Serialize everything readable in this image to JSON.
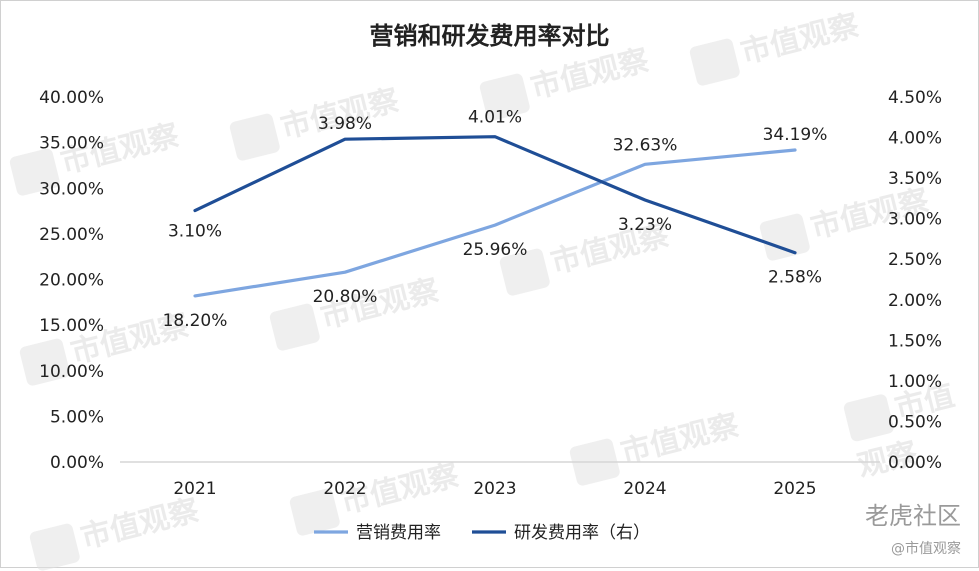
{
  "title": "营销和研发费用率对比",
  "watermark_text": "市值观察",
  "brand_main": "老虎社区",
  "brand_sub": "@市值观察",
  "colors": {
    "marketing": "#7ea6e0",
    "rnd": "#1f4e96",
    "axis": "#d6d6d6",
    "text": "#222222"
  },
  "chart_data": {
    "type": "line",
    "categories": [
      "2021",
      "2022",
      "2023",
      "2024",
      "2025"
    ],
    "series": [
      {
        "name": "营销费用率",
        "axis": "left",
        "values": [
          18.2,
          20.8,
          25.96,
          32.63,
          34.19
        ],
        "labels": [
          "18.20%",
          "20.80%",
          "25.96%",
          "32.63%",
          "34.19%"
        ]
      },
      {
        "name": "研发费用率（右）",
        "axis": "right",
        "values": [
          3.1,
          3.98,
          4.01,
          3.23,
          2.58
        ],
        "labels": [
          "3.10%",
          "3.98%",
          "4.01%",
          "3.23%",
          "2.58%"
        ]
      }
    ],
    "y_left": {
      "min": 0,
      "max": 40,
      "step": 5,
      "ticks": [
        "0.00%",
        "5.00%",
        "10.00%",
        "15.00%",
        "20.00%",
        "25.00%",
        "30.00%",
        "35.00%",
        "40.00%"
      ]
    },
    "y_right": {
      "min": 0,
      "max": 4.5,
      "step": 0.5,
      "ticks": [
        "0.00%",
        "0.50%",
        "1.00%",
        "1.50%",
        "2.00%",
        "2.50%",
        "3.00%",
        "3.50%",
        "4.00%",
        "4.50%"
      ]
    },
    "grid": false,
    "legend": "bottom"
  }
}
